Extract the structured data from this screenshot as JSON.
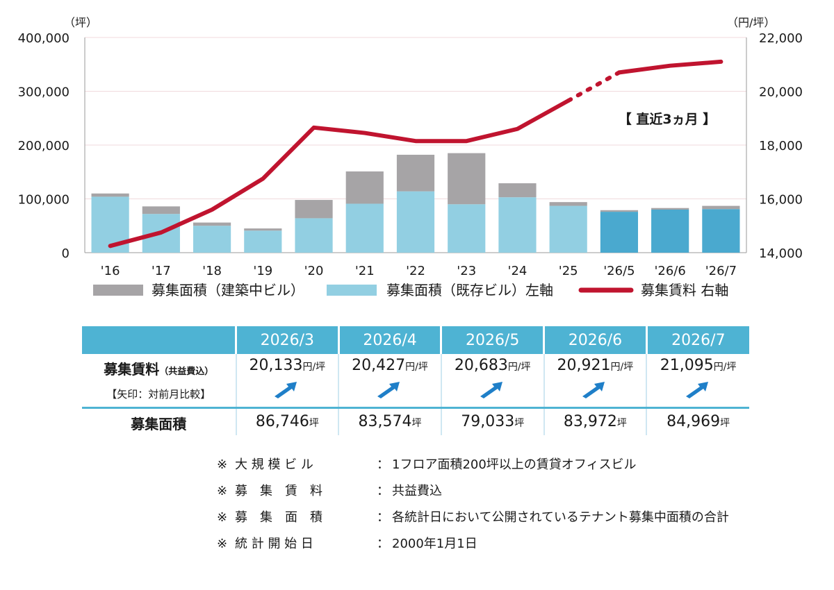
{
  "chart_data": {
    "type": "bar+line",
    "left_axis_unit": "（坪）",
    "right_axis_unit": "（円/坪）",
    "left_ticks": [
      "0",
      "100,000",
      "200,000",
      "300,000",
      "400,000"
    ],
    "right_ticks": [
      "14,000",
      "16,000",
      "18,000",
      "20,000",
      "22,000"
    ],
    "ylim_left": [
      0,
      400000
    ],
    "ylim_right": [
      14000,
      22000
    ],
    "categories": [
      "'16",
      "'17",
      "'18",
      "'19",
      "'20",
      "'21",
      "'22",
      "'23",
      "'24",
      "'25",
      "'26/5",
      "'26/6",
      "'26/7"
    ],
    "series": [
      {
        "name": "募集面積（既存ビル）左軸",
        "type": "bar",
        "color": "#92cfe2",
        "recent_color": "#4aa9cf",
        "values": [
          104000,
          72000,
          50000,
          41000,
          64000,
          91000,
          114000,
          90000,
          103000,
          87000,
          76000,
          80000,
          81000
        ]
      },
      {
        "name": "募集面積（建築中ビル）",
        "type": "bar",
        "color": "#a6a4a6",
        "values": [
          6000,
          14000,
          6000,
          4000,
          34000,
          60000,
          68000,
          95000,
          26000,
          7000,
          3000,
          3000,
          6000
        ]
      },
      {
        "name": "募集賃料 右軸",
        "type": "line",
        "color": "#c0142f",
        "values": [
          14250,
          14750,
          15600,
          16750,
          18650,
          18450,
          18150,
          18150,
          18600,
          19650,
          20700,
          20950,
          21100
        ],
        "dotted_segment_from_index": 9
      }
    ],
    "annotation": "【 直近3ヵ月 】",
    "legend": [
      {
        "label": "募集面積（建築中ビル）",
        "color": "#a6a4a6",
        "kind": "bar"
      },
      {
        "label": "募集面積（既存ビル）左軸",
        "color": "#92cfe2",
        "kind": "bar"
      },
      {
        "label": "募集賃料 右軸",
        "color": "#c0142f",
        "kind": "line"
      }
    ]
  },
  "table": {
    "headers": [
      "2026/3",
      "2026/4",
      "2026/5",
      "2026/6",
      "2026/7"
    ],
    "rent_label": "募集賃料",
    "rent_label_sub": "（共益費込）",
    "rent_note": "【矢印：対前月比較】",
    "rent_values": [
      "20,133",
      "20,427",
      "20,683",
      "20,921",
      "21,095"
    ],
    "rent_unit": "円/坪",
    "arrow_icon": "up-right-arrow-icon",
    "arrow_color": "#1f7fc8",
    "area_label": "募集面積",
    "area_values": [
      "86,746",
      "83,574",
      "79,033",
      "83,972",
      "84,969"
    ],
    "area_unit": "坪"
  },
  "notes": [
    {
      "mark": "※",
      "term": "大 規 模 ビ ル",
      "sep": "：",
      "desc": "1フロア面積200坪以上の賃貸オフィスビル"
    },
    {
      "mark": "※",
      "term": "募　集　賃　料",
      "sep": "：",
      "desc": "共益費込"
    },
    {
      "mark": "※",
      "term": "募　集　面　積",
      "sep": "：",
      "desc": "各統計日において公開されているテナント募集中面積の合計"
    },
    {
      "mark": "※",
      "term": "統 計 開 始 日",
      "sep": "：",
      "desc": "2000年1月1日"
    }
  ]
}
